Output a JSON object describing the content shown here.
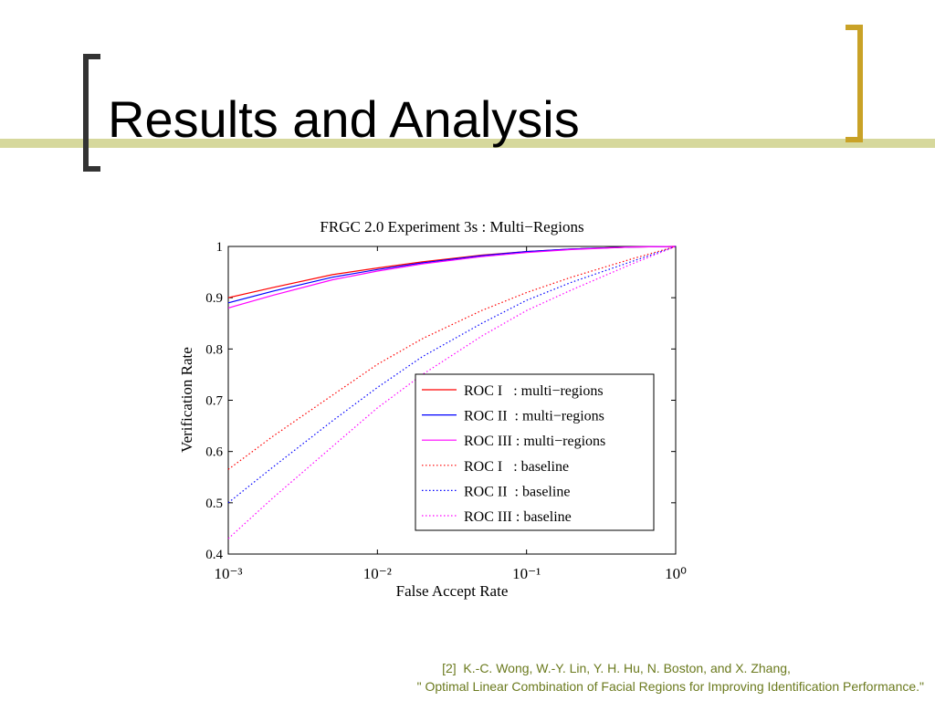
{
  "slide": {
    "title": "Results and Analysis",
    "citation": [
      "[2]  K.-C. Wong, W.-Y. Lin, Y. H. Hu, N. Boston, and X. Zhang,",
      "\" Optimal Linear Combination of Facial Regions for Improving Identification Performance.\""
    ]
  },
  "chart_data": {
    "type": "line",
    "title": "FRGC 2.0 Experiment 3s : Multi−Regions",
    "x_label": "False Accept Rate",
    "y_label": "Verification Rate",
    "x_scale": "log",
    "xlim": [
      0.001,
      1
    ],
    "ylim": [
      0.4,
      1
    ],
    "xticks": [
      {
        "value": 0.001,
        "label": "10⁻³"
      },
      {
        "value": 0.01,
        "label": "10⁻²"
      },
      {
        "value": 0.1,
        "label": "10⁻¹"
      },
      {
        "value": 1,
        "label": "10⁰"
      }
    ],
    "yticks": [
      0.4,
      0.5,
      0.6,
      0.7,
      0.8,
      0.9,
      1
    ],
    "legend": "lower right",
    "x": [
      0.001,
      0.002,
      0.005,
      0.01,
      0.02,
      0.05,
      0.1,
      0.2,
      0.5,
      1
    ],
    "series": [
      {
        "name": "ROC I   : multi−regions",
        "color": "#ff0000",
        "style": "solid",
        "values": [
          0.9,
          0.92,
          0.945,
          0.958,
          0.97,
          0.983,
          0.99,
          0.995,
          0.999,
          1
        ]
      },
      {
        "name": "ROC II  : multi−regions",
        "color": "#0000ff",
        "style": "solid",
        "values": [
          0.89,
          0.913,
          0.94,
          0.955,
          0.968,
          0.982,
          0.99,
          0.995,
          0.999,
          1
        ]
      },
      {
        "name": "ROC III : multi−regions",
        "color": "#ff00ff",
        "style": "solid",
        "values": [
          0.88,
          0.905,
          0.935,
          0.952,
          0.966,
          0.98,
          0.988,
          0.994,
          0.999,
          1
        ]
      },
      {
        "name": "ROC I   : baseline",
        "color": "#ff0000",
        "style": "dotted",
        "values": [
          0.565,
          0.63,
          0.71,
          0.77,
          0.82,
          0.875,
          0.91,
          0.94,
          0.975,
          1
        ]
      },
      {
        "name": "ROC II  : baseline",
        "color": "#0000ff",
        "style": "dotted",
        "values": [
          0.5,
          0.57,
          0.66,
          0.725,
          0.785,
          0.85,
          0.895,
          0.93,
          0.97,
          1
        ]
      },
      {
        "name": "ROC III : baseline",
        "color": "#ff00ff",
        "style": "dotted",
        "values": [
          0.43,
          0.51,
          0.61,
          0.685,
          0.75,
          0.825,
          0.875,
          0.915,
          0.965,
          1
        ]
      }
    ]
  }
}
